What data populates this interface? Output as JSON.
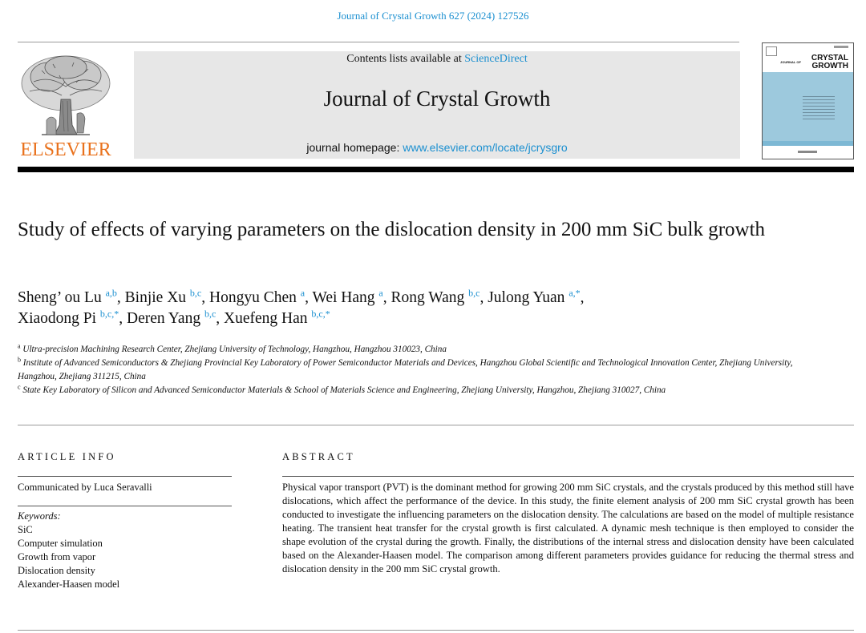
{
  "header": {
    "citation": "Journal of Crystal Growth 627 (2024) 127526",
    "contents_prefix": "Contents lists available at ",
    "contents_link": "ScienceDirect",
    "journal_title": "Journal of Crystal Growth",
    "homepage_prefix": "journal homepage: ",
    "homepage_link": "www.elsevier.com/locate/jcrysgro",
    "publisher": "ELSEVIER",
    "cover_title_line1": "CRYSTAL",
    "cover_title_line2": "GROWTH",
    "cover_prefix": "JOURNAL OF"
  },
  "article": {
    "title": "Study of effects of varying parameters on the dislocation density in 200 mm SiC bulk growth",
    "authors": [
      {
        "name": "Sheng’ ou Lu",
        "sup": "a,b",
        "sep": ", "
      },
      {
        "name": "Binjie Xu",
        "sup": "b,c",
        "sep": ", "
      },
      {
        "name": "Hongyu Chen",
        "sup": "a",
        "sep": ", "
      },
      {
        "name": "Wei Hang",
        "sup": "a",
        "sep": ", "
      },
      {
        "name": "Rong Wang",
        "sup": "b,c",
        "sep": ", "
      },
      {
        "name": "Julong Yuan",
        "sup": "a,*",
        "sep": ","
      },
      {
        "name": "Xiaodong Pi",
        "sup": "b,c,*",
        "sep": ", "
      },
      {
        "name": "Deren Yang",
        "sup": "b,c",
        "sep": ", "
      },
      {
        "name": "Xuefeng Han",
        "sup": "b,c,*",
        "sep": ""
      }
    ],
    "affiliations": [
      {
        "mark": "a",
        "text": "Ultra-precision Machining Research Center, Zhejiang University of Technology, Hangzhou, Hangzhou 310023, China"
      },
      {
        "mark": "b",
        "text": "Institute of Advanced Semiconductors & Zhejiang Provincial Key Laboratory of Power Semiconductor Materials and Devices, Hangzhou Global Scientific and Technological Innovation Center, Zhejiang University, Hangzhou, Zhejiang 311215, China"
      },
      {
        "mark": "c",
        "text": "State Key Laboratory of Silicon and Advanced Semiconductor Materials & School of Materials Science and Engineering, Zhejiang University, Hangzhou, Zhejiang 310027, China"
      }
    ]
  },
  "article_info": {
    "heading": "ARTICLE INFO",
    "communicated": "Communicated by Luca Seravalli",
    "keywords_label": "Keywords:",
    "keywords": [
      "SiC",
      "Computer simulation",
      "Growth from vapor",
      "Dislocation density",
      "Alexander-Haasen model"
    ]
  },
  "abstract": {
    "heading": "ABSTRACT",
    "text": "Physical vapor transport (PVT) is the dominant method for growing 200 mm SiC crystals, and the crystals produced by this method still have dislocations, which affect the performance of the device. In this study, the finite element analysis of 200 mm SiC crystal growth has been conducted to investigate the influencing parameters on the dislocation density. The calculations are based on the model of multiple resistance heating. The transient heat transfer for the crystal growth is first calculated. A dynamic mesh technique is then employed to consider the shape evolution of the crystal during the growth. Finally, the distributions of the internal stress and dislocation density have been calculated based on the Alexander-Haasen model. The comparison among different parameters provides guidance for reducing the thermal stress and dislocation density in the 200 mm SiC crystal growth."
  },
  "colors": {
    "link": "#1a8fd0",
    "publisher_orange": "#e9711c",
    "masthead_gray": "#e7e7e7",
    "cover_blue": "#9dc9dd"
  }
}
